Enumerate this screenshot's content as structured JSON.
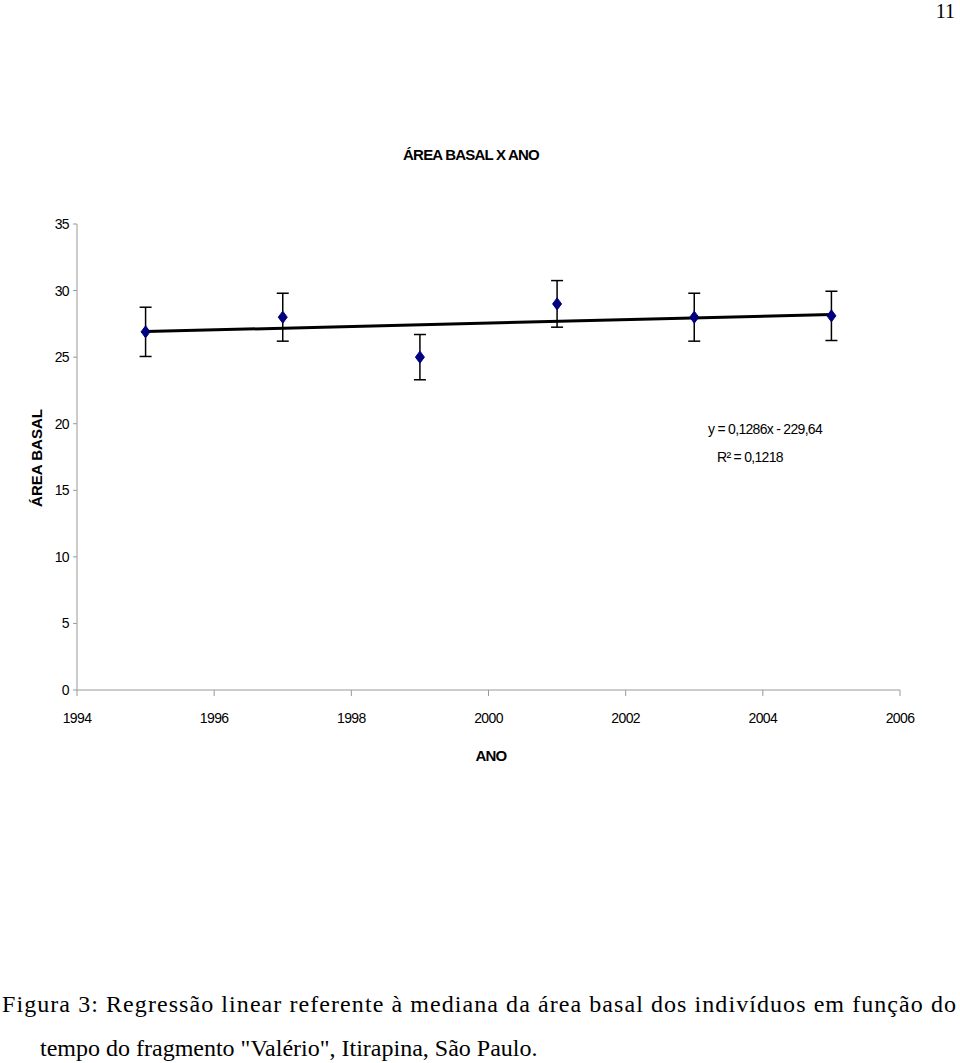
{
  "page_number": "11",
  "chart_data": {
    "type": "scatter",
    "title": "ÁREA BASAL X ANO",
    "x_label": "ANO",
    "y_label": "ÁREA BASAL",
    "x": [
      1995,
      1997,
      1999,
      2001,
      2003,
      2005
    ],
    "series": [
      {
        "values": [
          26.9,
          28.0,
          25.0,
          29.0,
          28.0,
          28.1
        ],
        "errors": [
          1.85,
          1.8,
          1.7,
          1.75,
          1.8,
          1.85
        ],
        "color": "#000080",
        "marker": "diamond"
      }
    ],
    "trendline": {
      "slope": 0.1286,
      "intercept": -229.64,
      "equation": "y = 0,1286x - 229,64",
      "r_squared": "R² = 0,1218"
    },
    "xlim": [
      1994,
      2006
    ],
    "xticks": [
      1994,
      1996,
      1998,
      2000,
      2002,
      2004,
      2006
    ],
    "ylim": [
      0,
      35
    ],
    "yticks": [
      0,
      5,
      10,
      15,
      20,
      25,
      30,
      35
    ],
    "grid": false
  },
  "caption": [
    "Figura 3: Regressão linear referente à mediana da área basal dos indivíduos em função do",
    "tempo do fragmento \"Valério\", Itirapina, São Paulo."
  ]
}
